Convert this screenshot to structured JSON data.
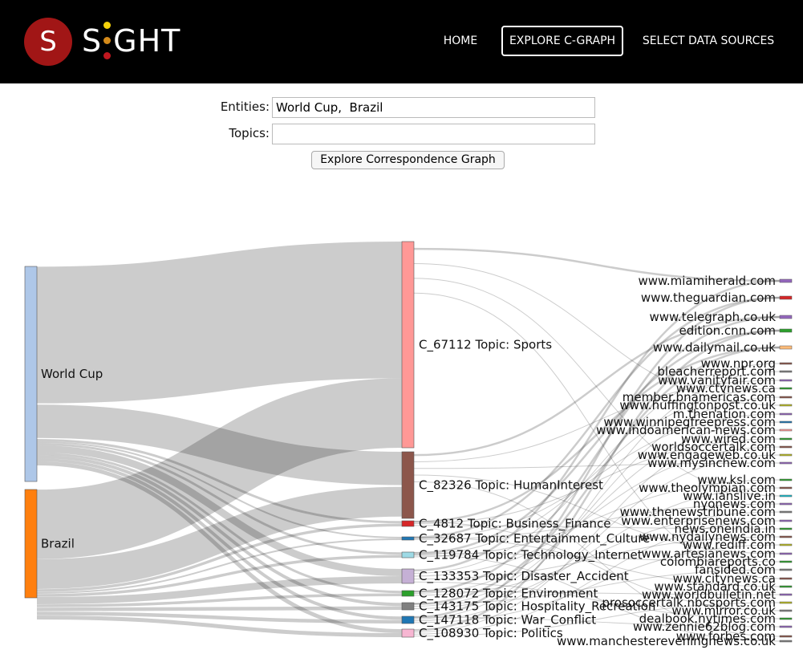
{
  "header": {
    "logo_letter": "S",
    "logo_text_before": "S",
    "logo_text_after": "GHT",
    "nav": {
      "home": "HOME",
      "explore": "EXPLORE C-GRAPH",
      "sources": "SELECT DATA SOURCES"
    }
  },
  "form": {
    "entities_label": "Entities:",
    "entities_value": "World Cup,  Brazil",
    "topics_label": "Topics:",
    "topics_value": "",
    "button_label": "Explore Correspondence Graph"
  },
  "sankey": {
    "entities": [
      {
        "label": "World Cup",
        "color": "#aec7e8"
      },
      {
        "label": "Brazil",
        "color": "#ff7f0e"
      }
    ],
    "topics": [
      {
        "label": "C_67112 Topic: Sports",
        "color": "#ff9896"
      },
      {
        "label": "C_82326 Topic: HumanInterest",
        "color": "#8c564b"
      },
      {
        "label": "C_4812 Topic: Business_Finance",
        "color": "#d62728"
      },
      {
        "label": "C_32687 Topic: Entertainment_Culture",
        "color": "#1f77b4"
      },
      {
        "label": "C_119784 Topic: Technology_Internet",
        "color": "#9edae5"
      },
      {
        "label": "C_133353 Topic: Disaster_Accident",
        "color": "#c5b0d5"
      },
      {
        "label": "C_128072 Topic: Environment",
        "color": "#2ca02c"
      },
      {
        "label": "C_143175 Topic: Hospitality_Recreation",
        "color": "#7f7f7f"
      },
      {
        "label": "C_147118 Topic: War_Conflict",
        "color": "#1f77b4"
      },
      {
        "label": "C_108930 Topic: Politics",
        "color": "#f7b6d2"
      }
    ],
    "sources": [
      {
        "label": "www.miamiherald.com",
        "color": "#9467bd"
      },
      {
        "label": "www.theguardian.com",
        "color": "#d62728"
      },
      {
        "label": "www.telegraph.co.uk",
        "color": "#9467bd"
      },
      {
        "label": "edition.cnn.com",
        "color": "#2ca02c"
      },
      {
        "label": "www.dailymail.co.uk",
        "color": "#ffbb78"
      },
      {
        "label": "www.npr.org",
        "color": "#8c564b"
      },
      {
        "label": "bleacherreport.com",
        "color": "#7f7f7f"
      },
      {
        "label": "www.vanityfair.com",
        "color": "#9467bd"
      },
      {
        "label": "www.ctvnews.ca",
        "color": "#2ca02c"
      },
      {
        "label": "member.bnamericas.com",
        "color": "#8c564b"
      },
      {
        "label": "www.huffingtonpost.co.uk",
        "color": "#bcbd22"
      },
      {
        "label": "m.thenation.com",
        "color": "#9467bd"
      },
      {
        "label": "www.winnipegfreepress.com",
        "color": "#1f77b4"
      },
      {
        "label": "www.indoamerican-news.com",
        "color": "#ff9896"
      },
      {
        "label": "www.wired.com",
        "color": "#2ca02c"
      },
      {
        "label": "worldsoccertalk.com",
        "color": "#8c564b"
      },
      {
        "label": "www.engageweb.co.uk",
        "color": "#bcbd22"
      },
      {
        "label": "www.mysinchew.com",
        "color": "#9467bd"
      },
      {
        "label": "www.ksl.com",
        "color": "#2ca02c"
      },
      {
        "label": "www.theolympian.com",
        "color": "#8c564b"
      },
      {
        "label": "www.ianslive.in",
        "color": "#17becf"
      },
      {
        "label": "nyonews.com",
        "color": "#9467bd"
      },
      {
        "label": "www.thenewstribune.com",
        "color": "#7f7f7f"
      },
      {
        "label": "www.enterprisenews.com",
        "color": "#9467bd"
      },
      {
        "label": "news.oneindia.in",
        "color": "#2ca02c"
      },
      {
        "label": "www.nydailynews.com",
        "color": "#8c564b"
      },
      {
        "label": "www.rediff.com",
        "color": "#bcbd22"
      },
      {
        "label": "www.artesianews.com",
        "color": "#9467bd"
      },
      {
        "label": "colombiareports.co",
        "color": "#2ca02c"
      },
      {
        "label": "fansided.com",
        "color": "#7f7f7f"
      },
      {
        "label": "www.citynews.ca",
        "color": "#8c564b"
      },
      {
        "label": "www.standard.co.uk",
        "color": "#2ca02c"
      },
      {
        "label": "www.worldbulletin.net",
        "color": "#9467bd"
      },
      {
        "label": "prosoccertalk.nbcsports.com",
        "color": "#bcbd22"
      },
      {
        "label": "www.mirror.co.uk",
        "color": "#7f7f7f"
      },
      {
        "label": "dealbook.nytimes.com",
        "color": "#2ca02c"
      },
      {
        "label": "www.zennie62blog.com",
        "color": "#9467bd"
      },
      {
        "label": "www.forbes.com",
        "color": "#8c564b"
      },
      {
        "label": "www.manchestereveningnews.co.uk",
        "color": "#7f7f7f"
      }
    ]
  }
}
